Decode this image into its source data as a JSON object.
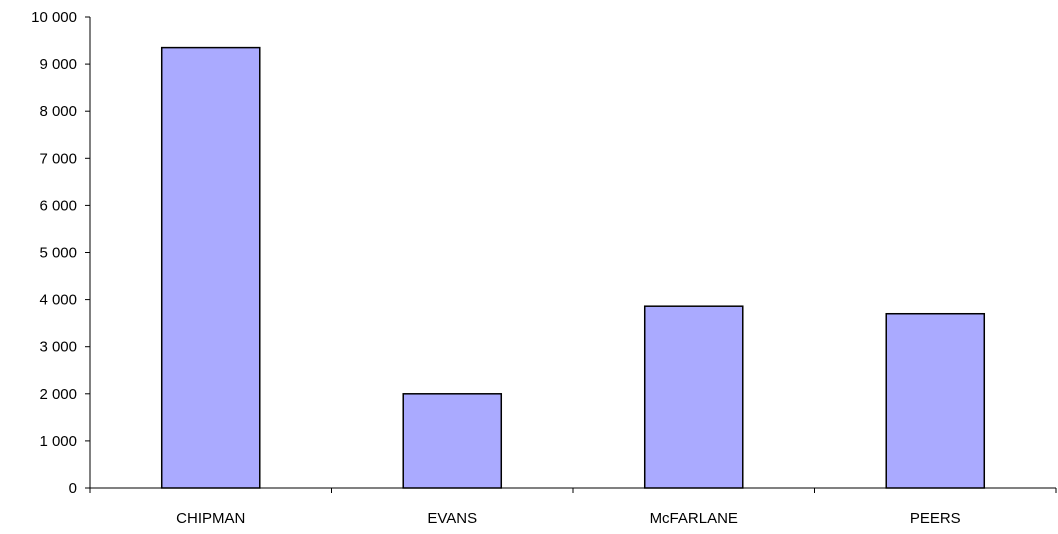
{
  "chart_data": {
    "type": "bar",
    "title": "",
    "xlabel": "",
    "ylabel": "",
    "categories": [
      "CHIPMAN",
      "EVANS",
      "McFARLANE",
      "PEERS"
    ],
    "values": [
      9350,
      2000,
      3860,
      3700
    ],
    "ylim": [
      0,
      10000
    ],
    "yticks": [
      0,
      1000,
      2000,
      3000,
      4000,
      5000,
      6000,
      7000,
      8000,
      9000,
      10000
    ],
    "ytick_labels": [
      "0",
      "1 000",
      "2 000",
      "3 000",
      "4 000",
      "5 000",
      "6 000",
      "7 000",
      "8 000",
      "9 000",
      "10 000"
    ],
    "grid": false,
    "legend": "none",
    "colors": {
      "bar_fill": "#aaaaff",
      "bar_stroke": "#000000",
      "axis": "#000000"
    }
  }
}
